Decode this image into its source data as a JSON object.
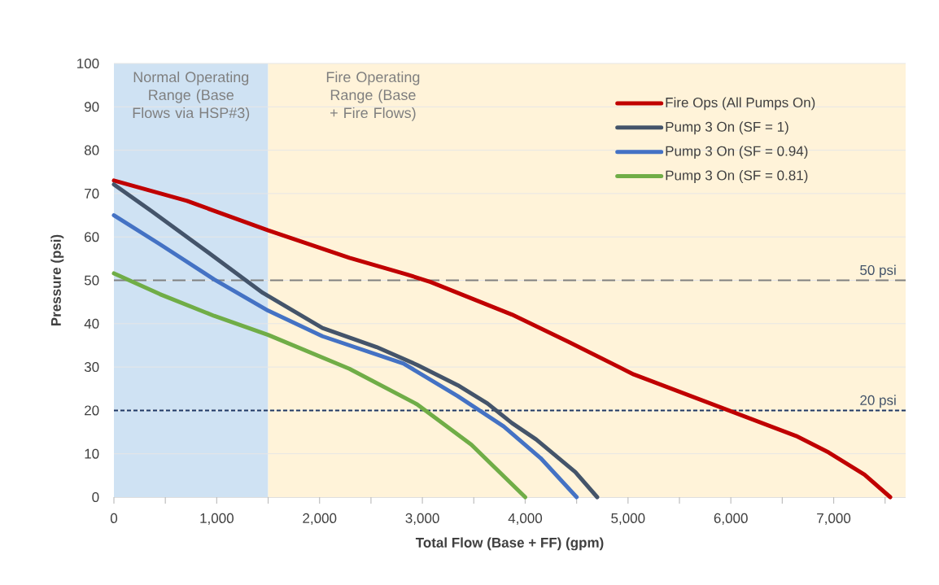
{
  "chart_data": {
    "type": "line",
    "xlabel": "Total Flow (Base + FF) (gpm)",
    "ylabel": "Pressure (psi)",
    "xlim": [
      0,
      7700
    ],
    "ylim": [
      0,
      100
    ],
    "xticks": [
      {
        "value": 0,
        "label": "0"
      },
      {
        "value": 500,
        "label": null
      },
      {
        "value": 1000,
        "label": "1,000"
      },
      {
        "value": 1500,
        "label": null
      },
      {
        "value": 2000,
        "label": "2,000"
      },
      {
        "value": 2500,
        "label": null
      },
      {
        "value": 3000,
        "label": "3,000"
      },
      {
        "value": 3500,
        "label": null
      },
      {
        "value": 4000,
        "label": "4,000"
      },
      {
        "value": 4500,
        "label": null
      },
      {
        "value": 5000,
        "label": "5,000"
      },
      {
        "value": 5500,
        "label": null
      },
      {
        "value": 6000,
        "label": "6,000"
      },
      {
        "value": 6500,
        "label": null
      },
      {
        "value": 7000,
        "label": "7,000"
      },
      {
        "value": 7500,
        "label": null
      }
    ],
    "yticks": [
      0,
      10,
      20,
      30,
      40,
      50,
      60,
      70,
      80,
      90,
      100
    ],
    "grid": "y",
    "legend": "top right",
    "bands": [
      {
        "axis": "x",
        "from": 0,
        "to": 1500,
        "label": "Normal Operating Range (Base Flows via HSP#3)",
        "color": "#cfe2f3"
      },
      {
        "axis": "x",
        "from": 1500,
        "to": 7700,
        "label": "Fire Operating Range (Base + Fire Flows)",
        "color": "#fff3d9"
      }
    ],
    "ref_lines": [
      {
        "axis": "y",
        "value": 50,
        "label": "50 psi",
        "color": "#808080",
        "line_style": "dashed"
      },
      {
        "axis": "y",
        "value": 20,
        "label": "20 psi",
        "color": "#1f3864",
        "line_style": "dotted"
      }
    ],
    "series": [
      {
        "name": "Fire Ops (All Pumps On)",
        "color": "#c00000",
        "x": [
          0,
          711,
          1500,
          2290,
          2844,
          3080,
          3870,
          4423,
          5055,
          5845,
          6635,
          6951,
          7300,
          7550
        ],
        "values": [
          73,
          68.3,
          61.5,
          55.2,
          51.4,
          49.6,
          42.1,
          35.8,
          28.3,
          21.2,
          14.1,
          10.3,
          5.2,
          0
        ]
      },
      {
        "name": "Pump 3 On (SF = 1)",
        "color": "#44546a",
        "x": [
          0,
          369,
          843,
          1448,
          2028,
          2554,
          2949,
          3344,
          3633,
          3870,
          4107,
          4487,
          4700
        ],
        "values": [
          72.1,
          65.9,
          57.7,
          47.1,
          39.0,
          34.6,
          30.5,
          25.8,
          21.6,
          17.1,
          13.3,
          5.8,
          0
        ]
      },
      {
        "name": "Pump 3 On (SF = 0.94)",
        "color": "#4472c4",
        "x": [
          0,
          448,
          974,
          1500,
          2028,
          2817,
          3344,
          3791,
          4150,
          4500
        ],
        "values": [
          65,
          58.3,
          50.2,
          43.0,
          37.1,
          30.8,
          23.3,
          16.3,
          9.0,
          0
        ]
      },
      {
        "name": "Pump 3 On (SF = 0.81)",
        "color": "#70ad47",
        "x": [
          0,
          448,
          974,
          1500,
          2290,
          2949,
          3476,
          3870,
          4000
        ],
        "values": [
          51.6,
          46.8,
          41.8,
          37.4,
          29.6,
          21.4,
          12.1,
          3.0,
          0
        ]
      }
    ]
  }
}
